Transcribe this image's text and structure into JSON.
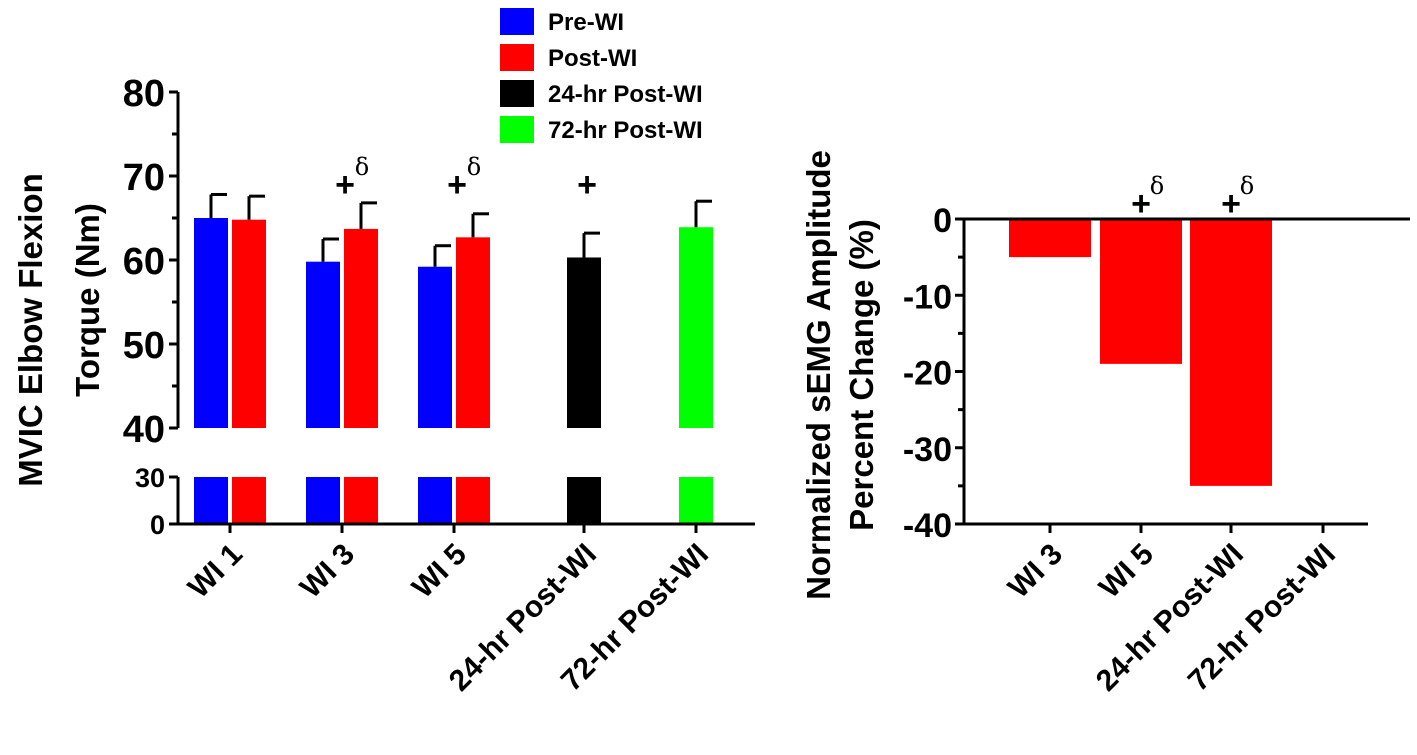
{
  "chart_data": [
    {
      "type": "bar",
      "title": "",
      "ylabel_lines": [
        "MVIC Elbow Flexion",
        "Torque (Nm)"
      ],
      "xlabel": "",
      "ylim": [
        0,
        80
      ],
      "axis_break": {
        "lower": [
          0,
          30
        ],
        "upper": [
          40,
          80
        ]
      },
      "yticks_lower": [
        "0",
        "30"
      ],
      "yticks_upper": [
        "40",
        "50",
        "60",
        "70",
        "80"
      ],
      "categories": [
        "WI 1",
        "WI 3",
        "WI 5",
        "24-hr Post-WI",
        "72-hr Post-WI"
      ],
      "series": [
        {
          "name": "Pre-WI",
          "color": "#0000ff",
          "values": [
            65,
            59.8,
            59.2,
            null,
            null
          ],
          "errors": [
            2.8,
            2.7,
            2.5,
            null,
            null
          ]
        },
        {
          "name": "Post-WI",
          "color": "#ff0000",
          "values": [
            64.8,
            63.7,
            62.7,
            null,
            null
          ],
          "errors": [
            2.8,
            3.1,
            2.8,
            null,
            null
          ]
        },
        {
          "name": "24-hr  Post-WI",
          "color": "#000000",
          "values": [
            null,
            null,
            null,
            60.3,
            null
          ],
          "errors": [
            null,
            null,
            null,
            2.9,
            null
          ]
        },
        {
          "name": "72-hr Post-WI",
          "color": "#00ff00",
          "values": [
            null,
            null,
            null,
            null,
            63.9
          ],
          "errors": [
            null,
            null,
            null,
            null,
            3.1
          ]
        }
      ],
      "annotations": [
        {
          "category": "WI 3",
          "symbol": "+",
          "superscript": "δ"
        },
        {
          "category": "WI 5",
          "symbol": "+",
          "superscript": "δ"
        },
        {
          "category": "24-hr Post-WI",
          "symbol": "+",
          "superscript": ""
        }
      ],
      "legend": {
        "placement": "top-center",
        "entries": [
          "Pre-WI",
          "Post-WI",
          "24-hr  Post-WI",
          "72-hr Post-WI"
        ]
      }
    },
    {
      "type": "bar",
      "title": "",
      "ylabel_lines": [
        "Normalized sEMG Amplitude",
        "Percent Change (%)"
      ],
      "xlabel": "",
      "ylim": [
        -40,
        0
      ],
      "yticks": [
        "0",
        "-10",
        "-20",
        "-30",
        "-40"
      ],
      "categories": [
        "WI 3",
        "WI 5",
        "24-hr Post-WI",
        "72-hr Post-WI"
      ],
      "series": [
        {
          "name": "Percent Change",
          "color": "#ff0000",
          "values": [
            -5,
            -19,
            -35,
            null
          ]
        }
      ],
      "annotations": [
        {
          "category": "WI 5",
          "symbol": "+",
          "superscript": "δ"
        },
        {
          "category": "24-hr Post-WI",
          "symbol": "+",
          "superscript": "δ"
        }
      ]
    }
  ]
}
